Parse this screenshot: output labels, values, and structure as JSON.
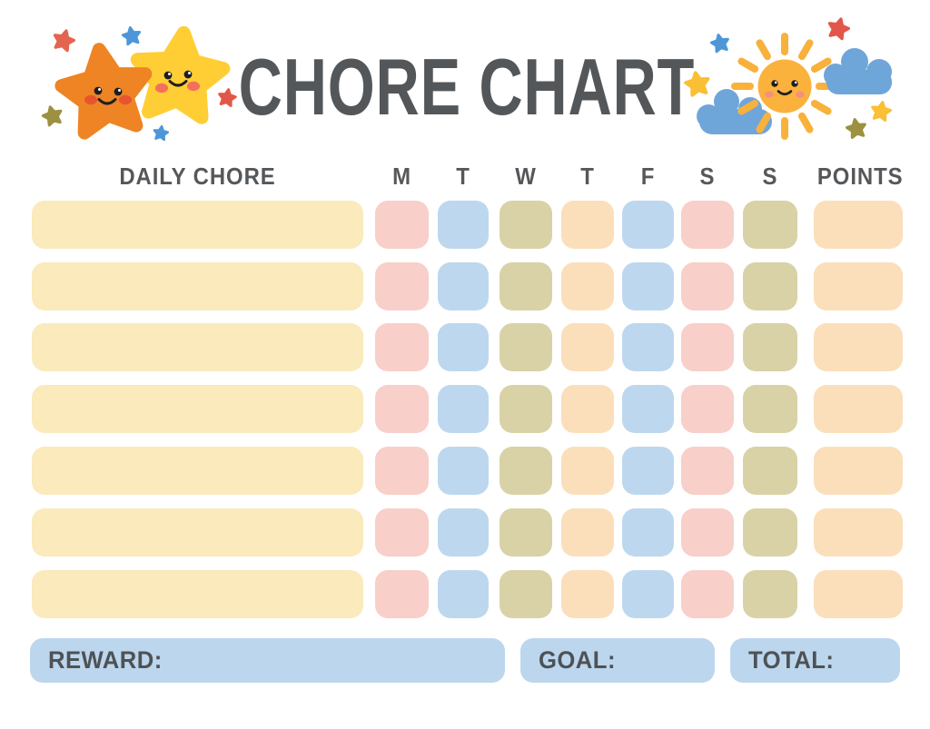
{
  "title": "CHORE CHART",
  "header": {
    "chore_column": "DAILY CHORE",
    "days": [
      "M",
      "T",
      "W",
      "T",
      "F",
      "S",
      "S"
    ],
    "points_column": "POINTS"
  },
  "grid": {
    "num_rows": 7,
    "chore_cell_color": "cream",
    "day_cell_pattern": [
      "pink",
      "blue",
      "olive",
      "peach",
      "blue",
      "pink",
      "olive"
    ],
    "points_cell_color": "peach"
  },
  "footer": {
    "reward_label": "REWARD:",
    "goal_label": "GOAL:",
    "total_label": "TOTAL:"
  },
  "palette": {
    "cream": "#FAEABC",
    "pink": "#F8CFC9",
    "blue": "#BDD7EE",
    "olive": "#D8D2A6",
    "peach": "#FBDFBB",
    "footer_blue": "#BCD6EE",
    "text": "#54575A",
    "orange_star": "#EE8424",
    "yellow_star": "#FFCE35",
    "sun_yellow": "#FBB23D",
    "cloud_blue": "#6FA6D9",
    "mini_star_red": "#E2574A",
    "mini_star_blue": "#4D96D9",
    "mini_star_olive": "#9C9140",
    "mini_star_yellow": "#FBBF34"
  },
  "decorations": {
    "left_icons": [
      "orange-star-face-icon",
      "yellow-star-face-icon",
      "mini-star-icons"
    ],
    "right_icons": [
      "sun-face-icon",
      "cloud-icons",
      "mini-star-icons"
    ]
  }
}
